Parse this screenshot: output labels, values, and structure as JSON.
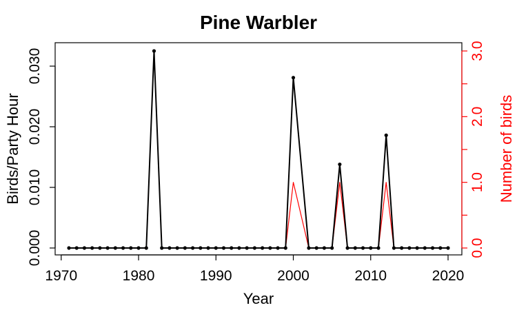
{
  "chart_data": {
    "type": "line",
    "title": "Pine Warbler",
    "xlabel": "Year",
    "ylabel": "Birds/Party Hour",
    "y2label": "Number of birds",
    "xlim": [
      1971,
      2020
    ],
    "ylim": [
      0,
      0.0325
    ],
    "y2lim": [
      0,
      3.0
    ],
    "xticks": [
      "1970",
      "1980",
      "1990",
      "2000",
      "2010",
      "2020"
    ],
    "yticks": [
      "0.000",
      "0.010",
      "0.020",
      "0.030"
    ],
    "y2ticks": [
      "0.0",
      "1.0",
      "2.0",
      "3.0"
    ],
    "grid": false,
    "colors": {
      "primary": "#000000",
      "secondary": "#ff0000"
    },
    "x": [
      1971,
      1972,
      1973,
      1974,
      1975,
      1976,
      1977,
      1978,
      1979,
      1980,
      1981,
      1982,
      1983,
      1984,
      1985,
      1986,
      1987,
      1988,
      1989,
      1990,
      1991,
      1992,
      1993,
      1994,
      1995,
      1996,
      1997,
      1998,
      1999,
      2000,
      2002,
      2003,
      2004,
      2005,
      2006,
      2007,
      2008,
      2009,
      2010,
      2011,
      2012,
      2013,
      2014,
      2015,
      2016,
      2017,
      2018,
      2019,
      2020
    ],
    "series": [
      {
        "axis": "left",
        "color": "#000000",
        "markers": true,
        "values": [
          0,
          0,
          0,
          0,
          0,
          0,
          0,
          0,
          0,
          0,
          0,
          0.0325,
          0,
          0,
          0,
          0,
          0,
          0,
          0,
          0,
          0,
          0,
          0,
          0,
          0,
          0,
          0,
          0,
          0,
          0.0281,
          0,
          0,
          0,
          0,
          0.0138,
          0,
          0,
          0,
          0,
          0,
          0.0186,
          0,
          0,
          0,
          0,
          0,
          0,
          0,
          0
        ]
      },
      {
        "axis": "right",
        "color": "#ff0000",
        "markers": false,
        "values": [
          0,
          0,
          0,
          0,
          0,
          0,
          0,
          0,
          0,
          0,
          0,
          3,
          0,
          0,
          0,
          0,
          0,
          0,
          0,
          0,
          0,
          0,
          0,
          0,
          0,
          0,
          0,
          0,
          0,
          1,
          0,
          0,
          0,
          0,
          1,
          0,
          0,
          0,
          0,
          0,
          1,
          0,
          0,
          0,
          0,
          0,
          0,
          0,
          0
        ]
      }
    ]
  }
}
